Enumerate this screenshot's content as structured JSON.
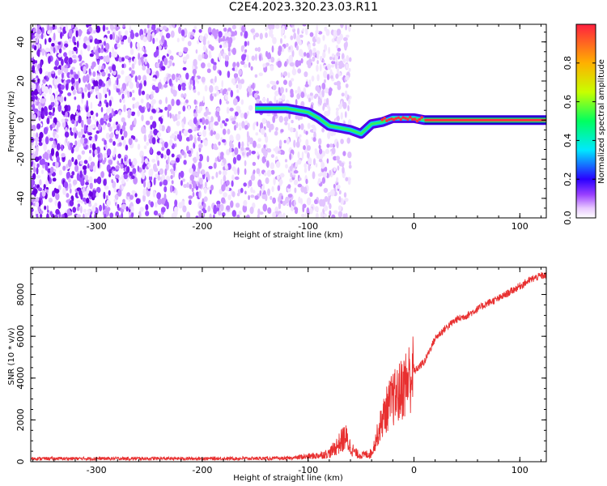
{
  "title": "C2E4.2023.320.23.03.R11",
  "chart_data": [
    {
      "type": "heatmap",
      "xlabel": "Height of straight line (km)",
      "ylabel": "Frequency (Hz)",
      "xlim": [
        -362,
        125
      ],
      "ylim": [
        -50,
        49
      ],
      "x_ticks": [
        -300,
        -200,
        -100,
        0,
        100
      ],
      "y_ticks": [
        -40,
        -20,
        0,
        20,
        40
      ],
      "x_tick_labels": [
        "-300",
        "-200",
        "-100",
        "0",
        "100"
      ],
      "y_tick_labels": [
        "-40",
        "-20",
        "0",
        "20",
        "40"
      ],
      "signal_trace": {
        "x": [
          -150,
          -140,
          -130,
          -120,
          -110,
          -100,
          -90,
          -80,
          -70,
          -60,
          -50,
          -40,
          -30,
          -20,
          -10,
          0,
          10,
          125
        ],
        "y": [
          6,
          6,
          6,
          6,
          5,
          4,
          1,
          -3,
          -4,
          -5,
          -7,
          -2,
          -1,
          1,
          1,
          1,
          0,
          0
        ]
      },
      "noise_region_xmax": -60,
      "colorbar": {
        "label": "Normalized spectral amplitude",
        "range": [
          0,
          1
        ],
        "ticks": [
          0.0,
          0.2,
          0.4,
          0.6,
          0.8
        ],
        "tick_labels": [
          "0.0",
          "0.2",
          "0.4",
          "0.6",
          "0.8"
        ]
      }
    },
    {
      "type": "line",
      "xlabel": "Height of straight line (km)",
      "ylabel": "SNR (10 * v/v)",
      "xlim": [
        -362,
        125
      ],
      "ylim": [
        0,
        9300
      ],
      "x_ticks": [
        -300,
        -200,
        -100,
        0,
        100
      ],
      "y_ticks": [
        0,
        2000,
        4000,
        6000,
        8000
      ],
      "x_tick_labels": [
        "-300",
        "-200",
        "-100",
        "0",
        "100"
      ],
      "y_tick_labels": [
        "0",
        "2000",
        "4000",
        "6000",
        "8000"
      ],
      "color": "#e83030",
      "series": [
        {
          "name": "SNR",
          "x": [
            -362,
            -300,
            -200,
            -120,
            -100,
            -90,
            -80,
            -70,
            -65,
            -60,
            -55,
            -50,
            -45,
            -40,
            -35,
            -30,
            -25,
            -20,
            -15,
            -10,
            -5,
            0,
            10,
            20,
            30,
            40,
            50,
            60,
            70,
            80,
            90,
            100,
            110,
            120,
            125
          ],
          "y": [
            150,
            150,
            150,
            160,
            250,
            300,
            400,
            900,
            1200,
            700,
            400,
            300,
            350,
            400,
            1200,
            2000,
            2600,
            3000,
            3200,
            3600,
            4000,
            4300,
            4800,
            5900,
            6400,
            6800,
            7000,
            7300,
            7600,
            7800,
            8100,
            8400,
            8700,
            8900,
            8900
          ]
        }
      ]
    }
  ]
}
